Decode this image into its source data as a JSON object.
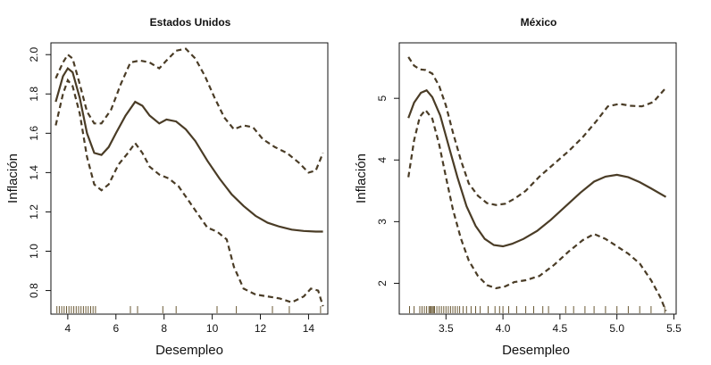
{
  "chart_data": [
    {
      "type": "line",
      "title": "Estados Unidos",
      "xlabel": "Desempleo",
      "ylabel": "Inflación",
      "xlim": [
        3.3,
        14.8
      ],
      "ylim": [
        0.68,
        2.06
      ],
      "xticks": [
        4,
        6,
        8,
        10,
        12,
        14
      ],
      "yticks": [
        0.8,
        1.0,
        1.2,
        1.4,
        1.6,
        1.8,
        2.0
      ],
      "xtick_labels": [
        "4",
        "6",
        "8",
        "10",
        "12",
        "14"
      ],
      "ytick_labels": [
        "0.8",
        "1.0",
        "1.2",
        "1.4",
        "1.6",
        "1.8",
        "2.0"
      ],
      "series": [
        {
          "name": "fit",
          "style": "solid",
          "x": [
            3.5,
            3.8,
            4.0,
            4.2,
            4.5,
            4.8,
            5.1,
            5.4,
            5.7,
            6.0,
            6.4,
            6.8,
            7.1,
            7.4,
            7.8,
            8.1,
            8.5,
            8.9,
            9.3,
            9.8,
            10.3,
            10.8,
            11.3,
            11.8,
            12.3,
            12.8,
            13.3,
            13.8,
            14.3,
            14.6
          ],
          "y": [
            1.76,
            1.89,
            1.93,
            1.91,
            1.78,
            1.6,
            1.5,
            1.49,
            1.53,
            1.6,
            1.69,
            1.76,
            1.74,
            1.69,
            1.65,
            1.67,
            1.66,
            1.62,
            1.56,
            1.46,
            1.37,
            1.29,
            1.23,
            1.18,
            1.145,
            1.125,
            1.11,
            1.103,
            1.1,
            1.1
          ]
        },
        {
          "name": "upper",
          "style": "dashed",
          "x": [
            3.5,
            3.8,
            4.0,
            4.2,
            4.5,
            4.8,
            5.1,
            5.4,
            5.8,
            6.2,
            6.6,
            7.0,
            7.4,
            7.8,
            8.1,
            8.5,
            8.9,
            9.3,
            9.7,
            10.1,
            10.5,
            10.9,
            11.3,
            11.7,
            12.1,
            12.6,
            13.1,
            13.6,
            14.0,
            14.3,
            14.6
          ],
          "y": [
            1.88,
            1.96,
            2.0,
            1.98,
            1.85,
            1.71,
            1.65,
            1.65,
            1.72,
            1.85,
            1.96,
            1.97,
            1.96,
            1.93,
            1.97,
            2.02,
            2.03,
            1.98,
            1.89,
            1.78,
            1.68,
            1.62,
            1.64,
            1.63,
            1.57,
            1.53,
            1.5,
            1.45,
            1.4,
            1.41,
            1.5
          ]
        },
        {
          "name": "lower",
          "style": "dashed",
          "x": [
            3.5,
            3.8,
            4.0,
            4.2,
            4.5,
            4.8,
            5.1,
            5.4,
            5.7,
            6.1,
            6.5,
            6.8,
            7.1,
            7.4,
            7.8,
            8.2,
            8.6,
            9.0,
            9.4,
            9.8,
            10.2,
            10.6,
            10.9,
            11.3,
            11.8,
            12.3,
            12.8,
            13.3,
            13.8,
            14.1,
            14.4,
            14.6
          ],
          "y": [
            1.64,
            1.8,
            1.87,
            1.84,
            1.7,
            1.48,
            1.34,
            1.31,
            1.34,
            1.44,
            1.5,
            1.55,
            1.5,
            1.43,
            1.39,
            1.37,
            1.33,
            1.26,
            1.19,
            1.12,
            1.1,
            1.06,
            0.92,
            0.81,
            0.78,
            0.77,
            0.76,
            0.74,
            0.77,
            0.81,
            0.8,
            0.72
          ]
        }
      ],
      "rug": [
        3.55,
        3.65,
        3.75,
        3.85,
        3.95,
        4.05,
        4.15,
        4.25,
        4.35,
        4.45,
        4.55,
        4.65,
        4.75,
        4.85,
        4.95,
        5.05,
        5.15,
        6.6,
        6.9,
        7.95,
        8.5,
        10.2,
        11.0,
        12.5,
        13.2,
        14.5
      ]
    },
    {
      "type": "line",
      "title": "México",
      "xlabel": "Desempleo",
      "ylabel": "Inflación",
      "xlim": [
        3.09,
        5.52
      ],
      "ylim": [
        1.5,
        5.9
      ],
      "xticks": [
        3.5,
        4.0,
        4.5,
        5.0,
        5.5
      ],
      "yticks": [
        2,
        3,
        4,
        5
      ],
      "xtick_labels": [
        "3.5",
        "4.0",
        "4.5",
        "5.0",
        "5.5"
      ],
      "ytick_labels": [
        "2",
        "3",
        "4",
        "5"
      ],
      "series": [
        {
          "name": "fit",
          "style": "solid",
          "x": [
            3.17,
            3.22,
            3.28,
            3.33,
            3.38,
            3.45,
            3.52,
            3.6,
            3.68,
            3.76,
            3.84,
            3.92,
            4.0,
            4.08,
            4.18,
            4.3,
            4.42,
            4.55,
            4.68,
            4.8,
            4.9,
            5.0,
            5.1,
            5.2,
            5.3,
            5.43
          ],
          "y": [
            4.68,
            4.93,
            5.09,
            5.13,
            5.02,
            4.72,
            4.25,
            3.72,
            3.25,
            2.93,
            2.72,
            2.62,
            2.6,
            2.64,
            2.72,
            2.85,
            3.03,
            3.25,
            3.47,
            3.65,
            3.73,
            3.76,
            3.72,
            3.64,
            3.54,
            3.4
          ]
        },
        {
          "name": "upper",
          "style": "dashed",
          "x": [
            3.17,
            3.22,
            3.27,
            3.32,
            3.38,
            3.44,
            3.5,
            3.56,
            3.63,
            3.7,
            3.78,
            3.86,
            3.94,
            4.02,
            4.1,
            4.2,
            4.32,
            4.45,
            4.58,
            4.7,
            4.82,
            4.92,
            5.02,
            5.12,
            5.22,
            5.32,
            5.43
          ],
          "y": [
            5.67,
            5.53,
            5.47,
            5.46,
            5.4,
            5.2,
            4.88,
            4.45,
            4.0,
            3.62,
            3.42,
            3.3,
            3.27,
            3.29,
            3.37,
            3.5,
            3.73,
            3.94,
            4.15,
            4.37,
            4.63,
            4.87,
            4.91,
            4.88,
            4.87,
            4.94,
            5.17
          ]
        },
        {
          "name": "lower",
          "style": "dashed",
          "x": [
            3.17,
            3.22,
            3.27,
            3.32,
            3.38,
            3.44,
            3.5,
            3.56,
            3.63,
            3.7,
            3.78,
            3.86,
            3.94,
            4.02,
            4.1,
            4.2,
            4.32,
            4.45,
            4.58,
            4.7,
            4.8,
            4.9,
            5.0,
            5.1,
            5.2,
            5.3,
            5.38,
            5.43
          ],
          "y": [
            3.72,
            4.32,
            4.7,
            4.81,
            4.67,
            4.25,
            3.72,
            3.2,
            2.73,
            2.37,
            2.12,
            1.97,
            1.92,
            1.95,
            2.02,
            2.05,
            2.12,
            2.3,
            2.52,
            2.7,
            2.8,
            2.72,
            2.6,
            2.48,
            2.32,
            2.05,
            1.78,
            1.55
          ]
        }
      ],
      "rug": [
        3.18,
        3.22,
        3.27,
        3.29,
        3.31,
        3.33,
        3.35,
        3.36,
        3.37,
        3.38,
        3.39,
        3.4,
        3.42,
        3.44,
        3.46,
        3.48,
        3.5,
        3.52,
        3.54,
        3.56,
        3.58,
        3.6,
        3.62,
        3.65,
        3.68,
        3.72,
        3.76,
        3.8,
        3.87,
        3.93,
        3.97,
        4.0,
        4.05,
        4.12,
        4.2,
        4.27,
        4.35,
        4.4,
        4.55,
        4.62,
        4.72,
        4.8,
        4.9,
        5.0,
        5.1,
        5.2,
        5.3,
        5.42
      ]
    }
  ]
}
